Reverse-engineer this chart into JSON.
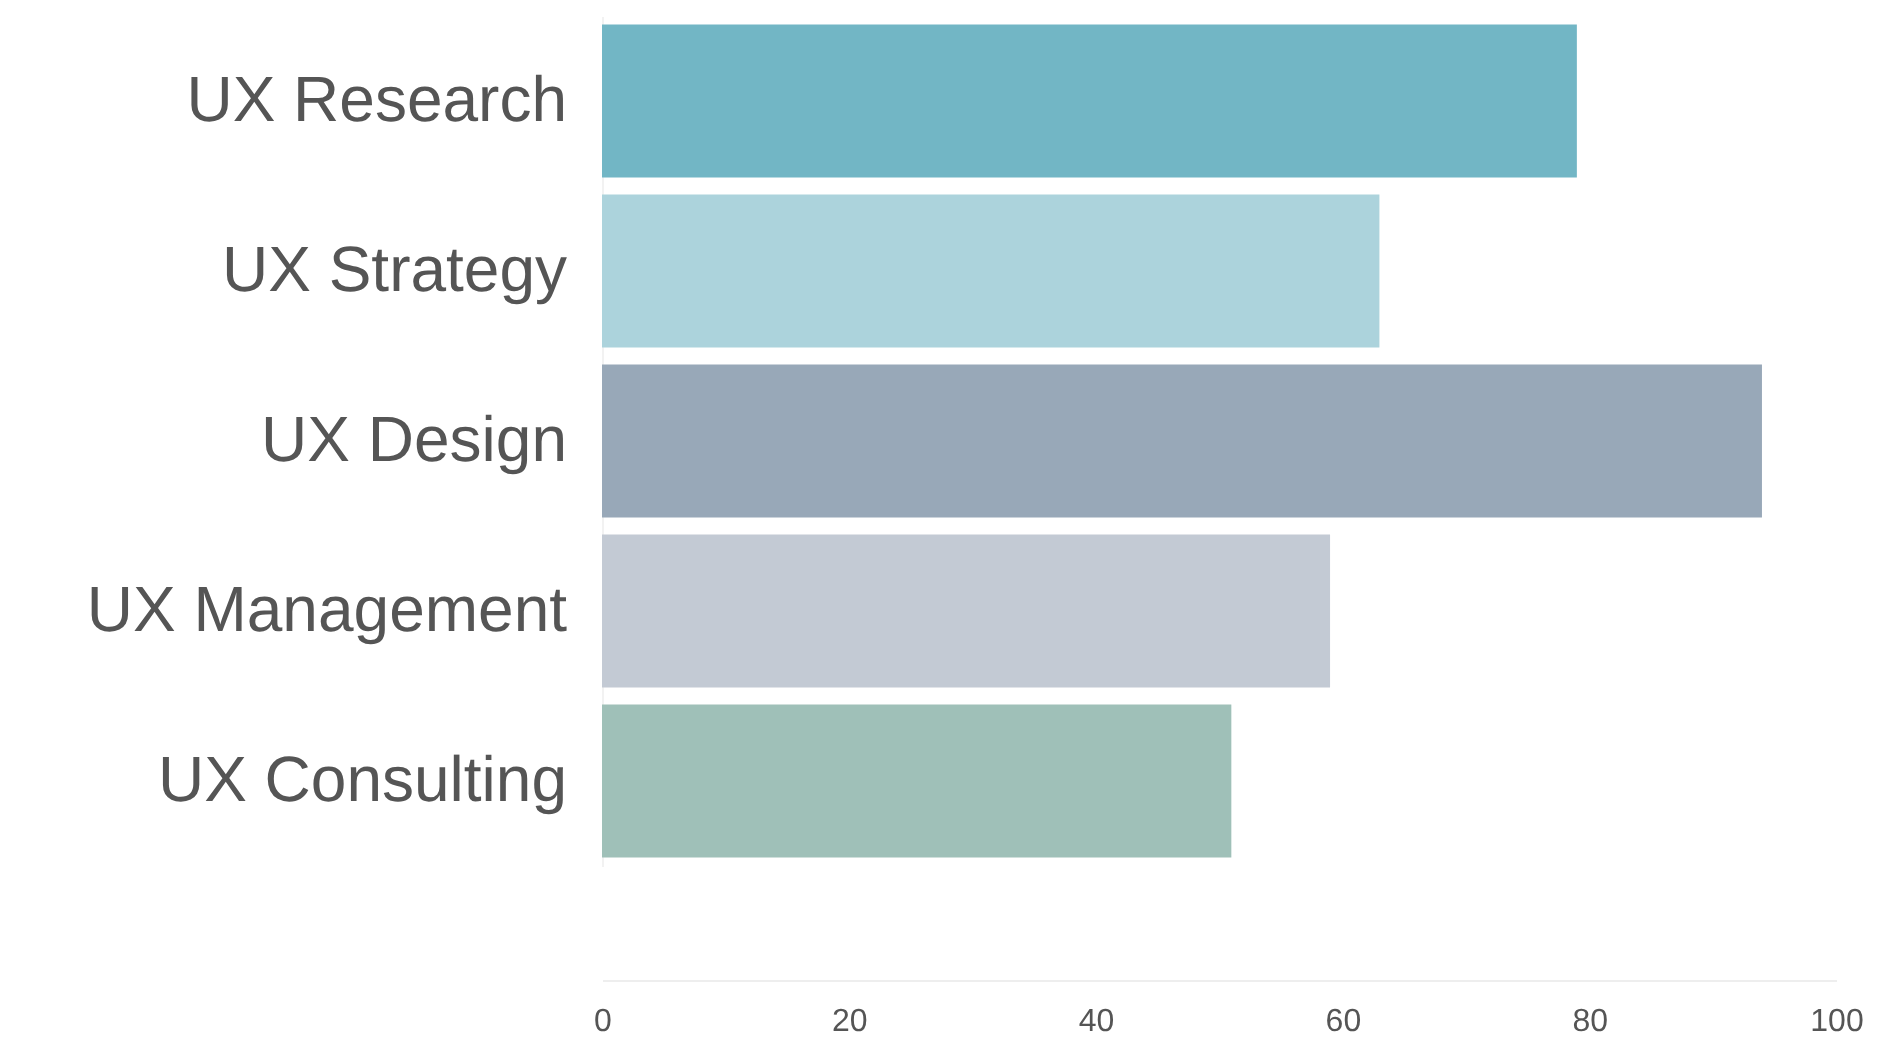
{
  "chart_data": {
    "type": "bar",
    "orientation": "horizontal",
    "categories": [
      "UX Research",
      "UX Strategy",
      "UX Design",
      "UX Management",
      "UX Consulting"
    ],
    "values": [
      79,
      63,
      94,
      59,
      51
    ],
    "colors": [
      "#72b6c5",
      "#acd3dc",
      "#98a8b8",
      "#c3cad4",
      "#9fc0b8"
    ],
    "xlim": [
      0,
      100
    ],
    "xticks": [
      0,
      20,
      40,
      60,
      80,
      100
    ],
    "grid": false
  }
}
